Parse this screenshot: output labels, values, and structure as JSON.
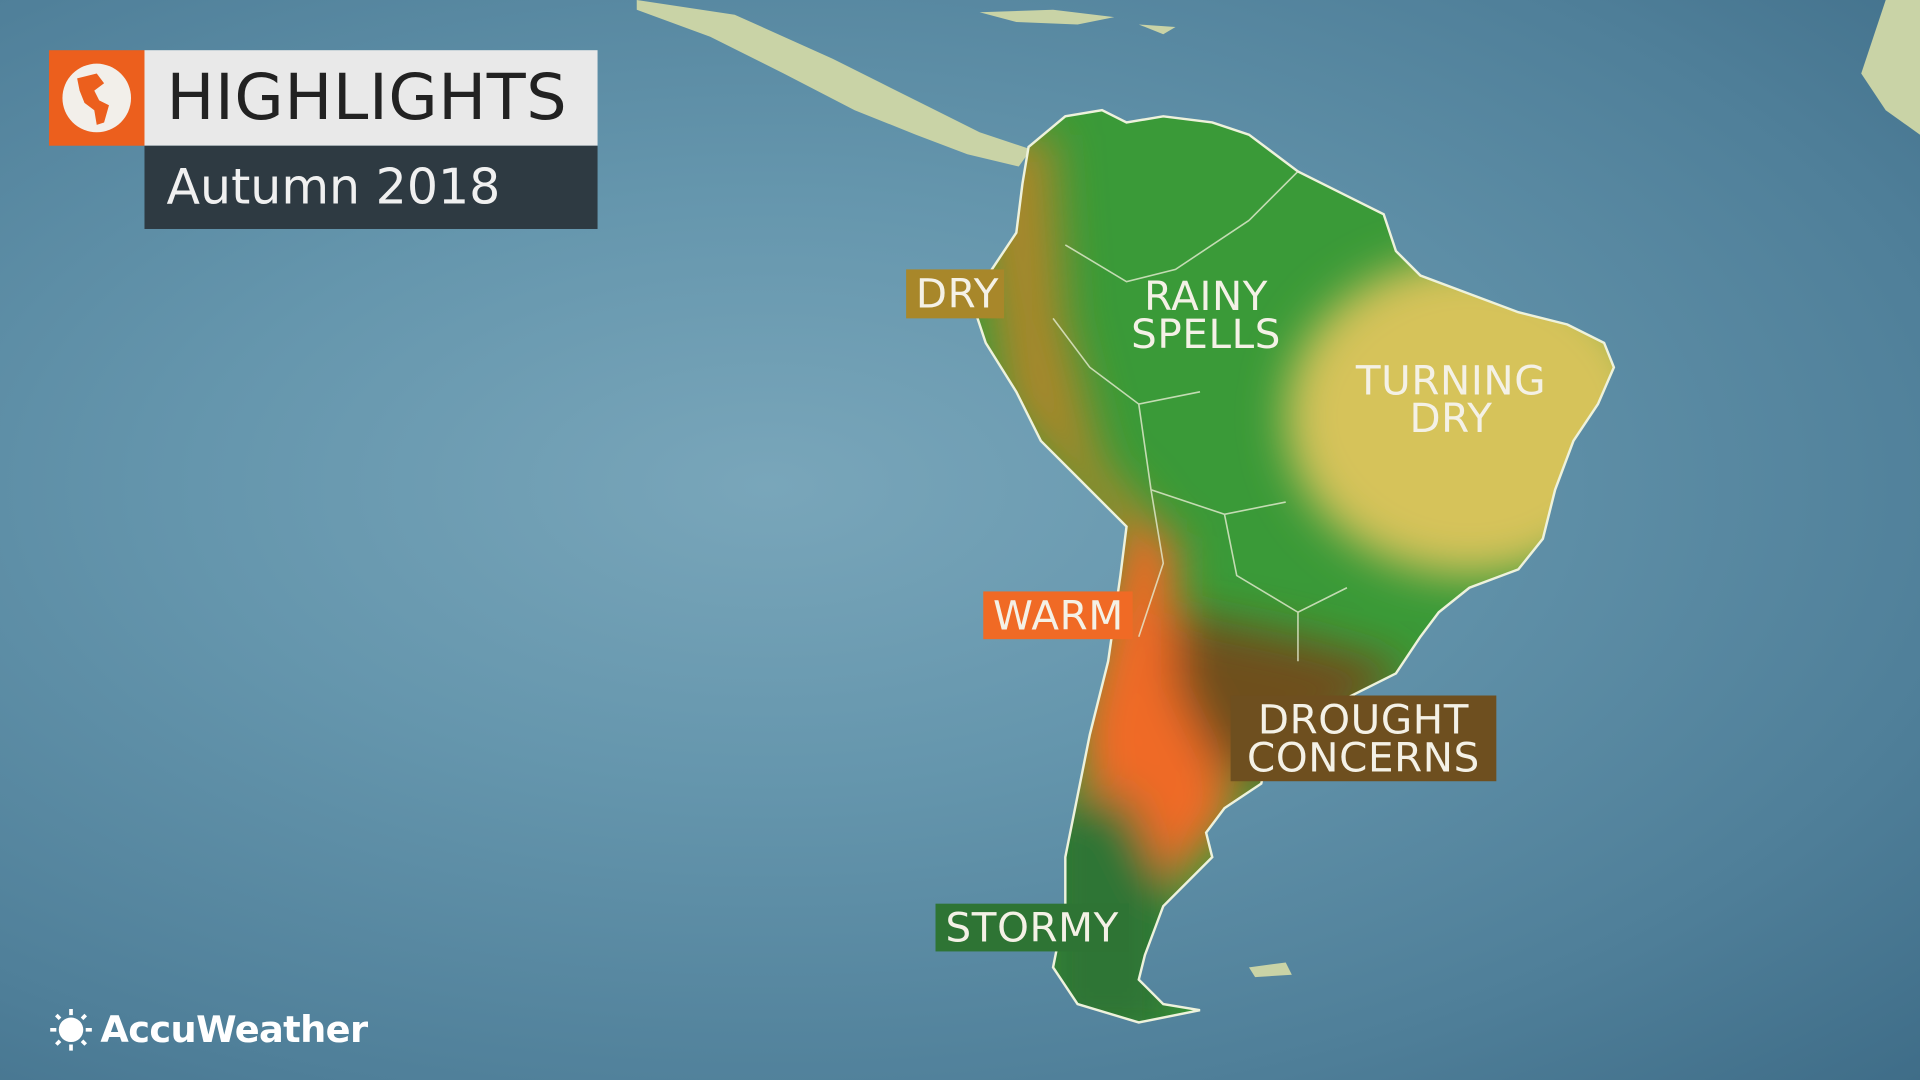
{
  "header": {
    "title": "HIGHLIGHTS",
    "subtitle": "Autumn 2018",
    "icon": "globe-icon"
  },
  "regions": [
    {
      "id": "dry",
      "label": "DRY",
      "color": "#a8872a"
    },
    {
      "id": "rainy",
      "label": "RAINY SPELLS",
      "line1": "RAINY",
      "line2": "SPELLS",
      "color": "#3a9a38"
    },
    {
      "id": "turning-dry",
      "label": "TURNING DRY",
      "line1": "TURNING",
      "line2": "DRY",
      "color": "#d6c35a"
    },
    {
      "id": "warm",
      "label": "WARM",
      "color": "#f06a25"
    },
    {
      "id": "drought",
      "label": "DROUGHT CONCERNS",
      "line1": "DROUGHT",
      "line2": "CONCERNS",
      "color": "#6e4f1f"
    },
    {
      "id": "stormy",
      "label": "STORMY",
      "color": "#2e7434"
    }
  ],
  "brand": {
    "name": "AccuWeather",
    "icon": "sun-icon"
  },
  "colors": {
    "ocean": "#6596ad",
    "land": "#c9d3a6",
    "accent": "#ec5f1d"
  }
}
